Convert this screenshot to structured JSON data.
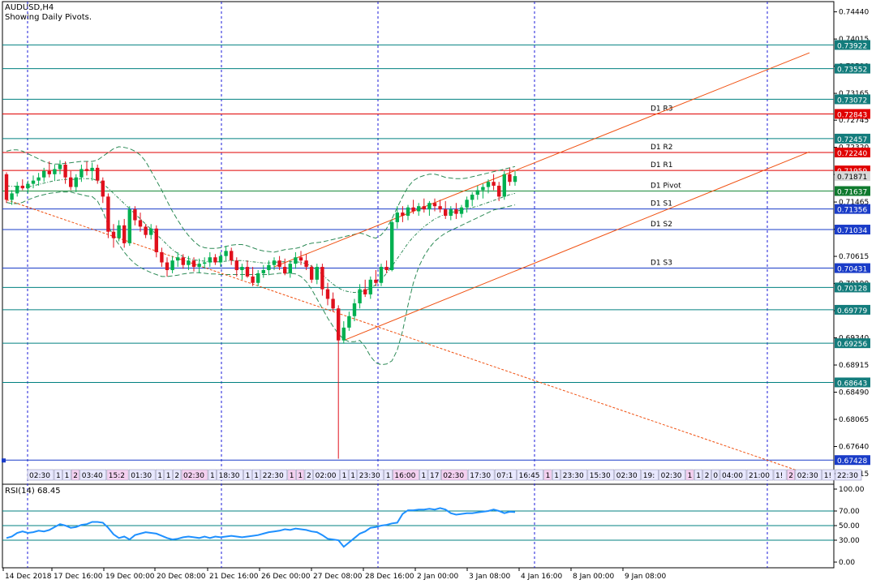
{
  "header": {
    "symbol": "AUDUSD,H4",
    "subtitle": "Showing Daily Pivots."
  },
  "rsi_panel": {
    "label": "RSI(14) 68.45"
  },
  "colors": {
    "bull": "#00b050",
    "bear": "#e0101c",
    "grid": "#1b1bd8",
    "hline": "#008080",
    "pivot_red": "#e00000",
    "channel": "#f05010",
    "bb": "#2e8b57",
    "rsi": "#1e90ff"
  },
  "chart_data": [
    {
      "type": "candlestick",
      "ylim": [
        0.6705,
        0.746
      ],
      "price_ticks": [
        "0.74440",
        "0.74015",
        "0.73590",
        "0.73165",
        "0.72745",
        "0.72320",
        "0.71895",
        "0.71465",
        "0.71040",
        "0.70615",
        "0.70190",
        "0.69765",
        "0.69340",
        "0.68915",
        "0.68490",
        "0.68065",
        "0.67640",
        "0.67215"
      ],
      "time_labels": [
        "14 Dec 2018",
        "17 Dec 16:00",
        "19 Dec 00:00",
        "20 Dec 08:00",
        "21 Dec 16:00",
        "26 Dec 00:00",
        "27 Dec 08:00",
        "28 Dec 16:00",
        "2 Jan 00:00",
        "3 Jan 08:00",
        "4 Jan 16:00",
        "8 Jan 00:00",
        "9 Jan 08:00"
      ],
      "strip_labels": [
        "02:30",
        "1",
        "1",
        "2",
        "03:40",
        "15:2",
        "01:30",
        "1",
        "1",
        "2",
        "02:30",
        "1",
        "18:30",
        "1",
        "1",
        "22:30",
        "1",
        "1",
        "2",
        "02:00",
        "1",
        "1",
        "23:30",
        "1",
        "16:00",
        "1",
        "17",
        "02:30",
        "17:30",
        "07:1",
        "16:45",
        "1",
        "1",
        "23:30",
        "15:30",
        "02:30",
        "19:",
        "02:30",
        "1",
        "1",
        "2",
        "0",
        "04:00",
        "21:00",
        "1!",
        "2",
        "02:30",
        "1!",
        "22:30"
      ],
      "levels": [
        {
          "price": 0.73922,
          "label": "0.73922",
          "kind": "teal"
        },
        {
          "price": 0.73552,
          "label": "0.73552",
          "kind": "teal"
        },
        {
          "price": 0.73072,
          "label": "0.73072",
          "kind": "teal"
        },
        {
          "price": 0.72843,
          "label": "0.72843",
          "kind": "red",
          "name": "D1 R3"
        },
        {
          "price": 0.72457,
          "label": "0.72457",
          "kind": "teal"
        },
        {
          "price": 0.7224,
          "label": "0.72240",
          "kind": "red",
          "name": "D1 R2"
        },
        {
          "price": 0.71959,
          "label": "0.71959",
          "kind": "red",
          "name": "D1 R1"
        },
        {
          "price": 0.71637,
          "label": "0.71637",
          "kind": "green",
          "name": "D1 Pivot"
        },
        {
          "price": 0.71356,
          "label": "0.71356",
          "kind": "blue",
          "name": "D1 S1"
        },
        {
          "price": 0.71034,
          "label": "0.71034",
          "kind": "blue",
          "name": "D1 S2"
        },
        {
          "price": 0.70431,
          "label": "0.70431",
          "kind": "blue",
          "name": "D1 S3"
        },
        {
          "price": 0.70128,
          "label": "0.70128",
          "kind": "teal"
        },
        {
          "price": 0.69779,
          "label": "0.69779",
          "kind": "teal"
        },
        {
          "price": 0.69256,
          "label": "0.69256",
          "kind": "teal"
        },
        {
          "price": 0.68643,
          "label": "0.68643",
          "kind": "teal"
        },
        {
          "price": 0.67428,
          "label": "0.67428",
          "kind": "blue"
        }
      ],
      "current_price": {
        "price": 0.71871,
        "label": "0.71871"
      },
      "candles": [
        [
          0.719,
          0.7193,
          0.7145,
          0.715
        ],
        [
          0.715,
          0.7165,
          0.7142,
          0.716
        ],
        [
          0.716,
          0.7178,
          0.7155,
          0.7172
        ],
        [
          0.7172,
          0.7182,
          0.7165,
          0.7168
        ],
        [
          0.7168,
          0.718,
          0.716,
          0.7175
        ],
        [
          0.7175,
          0.7188,
          0.7168,
          0.718
        ],
        [
          0.718,
          0.7192,
          0.7172,
          0.7185
        ],
        [
          0.7185,
          0.72,
          0.7178,
          0.7195
        ],
        [
          0.7195,
          0.721,
          0.7185,
          0.719
        ],
        [
          0.719,
          0.7205,
          0.718,
          0.7198
        ],
        [
          0.7198,
          0.7212,
          0.719,
          0.7205
        ],
        [
          0.7205,
          0.721,
          0.7175,
          0.7185
        ],
        [
          0.7185,
          0.7195,
          0.7165,
          0.717
        ],
        [
          0.717,
          0.719,
          0.7162,
          0.7185
        ],
        [
          0.7185,
          0.7205,
          0.7178,
          0.7198
        ],
        [
          0.7198,
          0.721,
          0.7188,
          0.7195
        ],
        [
          0.7195,
          0.7208,
          0.718,
          0.72
        ],
        [
          0.72,
          0.7205,
          0.7175,
          0.718
        ],
        [
          0.718,
          0.7185,
          0.7145,
          0.7155
        ],
        [
          0.7155,
          0.716,
          0.709,
          0.71
        ],
        [
          0.71,
          0.7112,
          0.7075,
          0.709
        ],
        [
          0.709,
          0.7118,
          0.7085,
          0.711
        ],
        [
          0.711,
          0.712,
          0.7075,
          0.7082
        ],
        [
          0.7082,
          0.714,
          0.7078,
          0.7135
        ],
        [
          0.7135,
          0.714,
          0.711,
          0.7118
        ],
        [
          0.7118,
          0.713,
          0.71,
          0.7108
        ],
        [
          0.7108,
          0.7112,
          0.709,
          0.7095
        ],
        [
          0.7095,
          0.7112,
          0.7088,
          0.7105
        ],
        [
          0.7105,
          0.711,
          0.706,
          0.7068
        ],
        [
          0.7068,
          0.7075,
          0.7045,
          0.7052
        ],
        [
          0.7052,
          0.706,
          0.703,
          0.704
        ],
        [
          0.704,
          0.7062,
          0.7035,
          0.7055
        ],
        [
          0.7055,
          0.7068,
          0.7045,
          0.706
        ],
        [
          0.706,
          0.7065,
          0.7042,
          0.7048
        ],
        [
          0.7048,
          0.7062,
          0.704,
          0.7055
        ],
        [
          0.7055,
          0.706,
          0.7038,
          0.7045
        ],
        [
          0.7045,
          0.7058,
          0.7035,
          0.705
        ],
        [
          0.705,
          0.706,
          0.7042,
          0.7052
        ],
        [
          0.7052,
          0.7068,
          0.7045,
          0.706
        ],
        [
          0.706,
          0.7065,
          0.7048,
          0.7052
        ],
        [
          0.7052,
          0.7068,
          0.7045,
          0.7062
        ],
        [
          0.7062,
          0.7078,
          0.7055,
          0.707
        ],
        [
          0.707,
          0.7075,
          0.7048,
          0.7055
        ],
        [
          0.7055,
          0.706,
          0.703,
          0.704
        ],
        [
          0.704,
          0.705,
          0.7025,
          0.7045
        ],
        [
          0.7045,
          0.7055,
          0.7028,
          0.703
        ],
        [
          0.703,
          0.7045,
          0.7015,
          0.702
        ],
        [
          0.702,
          0.704,
          0.7015,
          0.7035
        ],
        [
          0.7035,
          0.7048,
          0.7028,
          0.704
        ],
        [
          0.704,
          0.7055,
          0.7032,
          0.7048
        ],
        [
          0.7048,
          0.706,
          0.704,
          0.7055
        ],
        [
          0.7055,
          0.7062,
          0.704,
          0.7045
        ],
        [
          0.7045,
          0.7058,
          0.7032,
          0.7035
        ],
        [
          0.7035,
          0.7055,
          0.7028,
          0.705
        ],
        [
          0.705,
          0.7068,
          0.7042,
          0.706
        ],
        [
          0.706,
          0.707,
          0.7048,
          0.7055
        ],
        [
          0.7055,
          0.7065,
          0.704,
          0.7045
        ],
        [
          0.7045,
          0.7048,
          0.702,
          0.7025
        ],
        [
          0.7025,
          0.705,
          0.7018,
          0.7045
        ],
        [
          0.7045,
          0.705,
          0.7,
          0.701
        ],
        [
          0.701,
          0.702,
          0.6985,
          0.6995
        ],
        [
          0.6995,
          0.7005,
          0.6975,
          0.698
        ],
        [
          0.698,
          0.6985,
          0.6745,
          0.693
        ],
        [
          0.693,
          0.696,
          0.6925,
          0.695
        ],
        [
          0.695,
          0.6975,
          0.6945,
          0.6968
        ],
        [
          0.6968,
          0.6995,
          0.696,
          0.6988
        ],
        [
          0.6988,
          0.7018,
          0.698,
          0.701
        ],
        [
          0.701,
          0.7025,
          0.6998,
          0.7002
        ],
        [
          0.7002,
          0.703,
          0.6995,
          0.7025
        ],
        [
          0.7025,
          0.704,
          0.7015,
          0.702
        ],
        [
          0.702,
          0.705,
          0.7015,
          0.7045
        ],
        [
          0.7045,
          0.7055,
          0.7035,
          0.704
        ],
        [
          0.704,
          0.712,
          0.7038,
          0.7115
        ],
        [
          0.7115,
          0.714,
          0.7105,
          0.713
        ],
        [
          0.713,
          0.714,
          0.7115,
          0.7125
        ],
        [
          0.7125,
          0.7142,
          0.7118,
          0.7138
        ],
        [
          0.7138,
          0.715,
          0.7128,
          0.7132
        ],
        [
          0.7132,
          0.7145,
          0.7125,
          0.714
        ],
        [
          0.714,
          0.7152,
          0.713,
          0.7135
        ],
        [
          0.7135,
          0.7148,
          0.7125,
          0.7145
        ],
        [
          0.7145,
          0.7152,
          0.7132,
          0.714
        ],
        [
          0.714,
          0.715,
          0.713,
          0.7135
        ],
        [
          0.7135,
          0.7148,
          0.712,
          0.7125
        ],
        [
          0.7125,
          0.714,
          0.7118,
          0.7135
        ],
        [
          0.7135,
          0.7145,
          0.712,
          0.7128
        ],
        [
          0.7128,
          0.7142,
          0.7122,
          0.7138
        ],
        [
          0.7138,
          0.7155,
          0.713,
          0.715
        ],
        [
          0.715,
          0.7162,
          0.714,
          0.7158
        ],
        [
          0.7158,
          0.7172,
          0.715,
          0.7165
        ],
        [
          0.7165,
          0.7175,
          0.7152,
          0.717
        ],
        [
          0.717,
          0.7182,
          0.716,
          0.7178
        ],
        [
          0.7178,
          0.719,
          0.7165,
          0.7172
        ],
        [
          0.7172,
          0.7178,
          0.7148,
          0.7155
        ],
        [
          0.7155,
          0.7195,
          0.715,
          0.719
        ],
        [
          0.719,
          0.72,
          0.7172,
          0.7178
        ],
        [
          0.7178,
          0.7195,
          0.7172,
          0.7187
        ]
      ],
      "ma_upper": [
        0.7226,
        0.7228,
        0.7228,
        0.7226,
        0.7222,
        0.7218,
        0.7214,
        0.721,
        0.7207,
        0.7206,
        0.7206,
        0.7207,
        0.7208,
        0.7209,
        0.721,
        0.721,
        0.721,
        0.7212,
        0.7218,
        0.7224,
        0.723,
        0.7233,
        0.7232,
        0.723,
        0.7226,
        0.722,
        0.721,
        0.7195,
        0.718,
        0.7165,
        0.7148,
        0.7132,
        0.7118,
        0.7105,
        0.7094,
        0.7085,
        0.7078,
        0.7075,
        0.7074,
        0.7074,
        0.7075,
        0.7077,
        0.7079,
        0.708,
        0.708,
        0.7078,
        0.7075,
        0.7072,
        0.707,
        0.7069,
        0.7068,
        0.707,
        0.7072,
        0.7073,
        0.7074,
        0.7076,
        0.708,
        0.7082,
        0.7083,
        0.7084,
        0.7086,
        0.7088,
        0.709,
        0.7092,
        0.7094,
        0.7096,
        0.7098,
        0.7096,
        0.7092,
        0.709,
        0.7095,
        0.7105,
        0.712,
        0.7138,
        0.7155,
        0.717,
        0.718,
        0.7185,
        0.7188,
        0.719,
        0.719,
        0.7188,
        0.7185,
        0.7184,
        0.7183,
        0.7183,
        0.7184,
        0.7186,
        0.7188,
        0.719,
        0.7192,
        0.7194,
        0.7196,
        0.7198,
        0.72,
        0.7202
      ],
      "ma_mid": [
        0.7172,
        0.7171,
        0.7171,
        0.717,
        0.717,
        0.7172,
        0.7174,
        0.7176,
        0.7178,
        0.718,
        0.7181,
        0.7182,
        0.7182,
        0.7182,
        0.7183,
        0.7183,
        0.7183,
        0.718,
        0.7175,
        0.7168,
        0.716,
        0.7152,
        0.7144,
        0.7136,
        0.7128,
        0.712,
        0.7112,
        0.7104,
        0.7096,
        0.7088,
        0.708,
        0.7072,
        0.7066,
        0.7061,
        0.7058,
        0.7056,
        0.7055,
        0.7054,
        0.7053,
        0.7053,
        0.7053,
        0.7054,
        0.7055,
        0.7055,
        0.7055,
        0.7054,
        0.7053,
        0.7052,
        0.7051,
        0.7051,
        0.7052,
        0.7053,
        0.7053,
        0.7053,
        0.7053,
        0.7052,
        0.705,
        0.7046,
        0.704,
        0.7033,
        0.7025,
        0.7018,
        0.7012,
        0.7008,
        0.7006,
        0.7005,
        0.7006,
        0.7008,
        0.7012,
        0.7017,
        0.7025,
        0.7035,
        0.7046,
        0.7058,
        0.707,
        0.7082,
        0.7092,
        0.71,
        0.7108,
        0.7114,
        0.712,
        0.7124,
        0.7128,
        0.713,
        0.7132,
        0.7134,
        0.7136,
        0.7138,
        0.714,
        0.7143,
        0.7146,
        0.7149,
        0.7152,
        0.7155,
        0.7158,
        0.716
      ],
      "ma_lower": [
        0.7146,
        0.7144,
        0.7144,
        0.7146,
        0.715,
        0.7153,
        0.7156,
        0.7158,
        0.716,
        0.7161,
        0.7162,
        0.7162,
        0.7162,
        0.716,
        0.7158,
        0.7156,
        0.7155,
        0.7148,
        0.7132,
        0.711,
        0.7092,
        0.708,
        0.7068,
        0.7058,
        0.705,
        0.7044,
        0.704,
        0.7036,
        0.7033,
        0.703,
        0.703,
        0.7031,
        0.7032,
        0.7034,
        0.7035,
        0.7036,
        0.7036,
        0.7035,
        0.7034,
        0.7034,
        0.7033,
        0.7033,
        0.7033,
        0.7033,
        0.7033,
        0.7033,
        0.7033,
        0.7033,
        0.7033,
        0.7033,
        0.7034,
        0.7035,
        0.7035,
        0.7035,
        0.7034,
        0.703,
        0.7022,
        0.701,
        0.6995,
        0.698,
        0.6965,
        0.6952,
        0.694,
        0.6932,
        0.6928,
        0.6928,
        0.693,
        0.692,
        0.6905,
        0.6895,
        0.6892,
        0.6893,
        0.6898,
        0.6915,
        0.6945,
        0.6985,
        0.702,
        0.7045,
        0.7062,
        0.7075,
        0.7085,
        0.7092,
        0.7098,
        0.7102,
        0.7106,
        0.711,
        0.7114,
        0.7118,
        0.7122,
        0.7126,
        0.713,
        0.7134,
        0.7136,
        0.7138,
        0.714,
        0.7142
      ],
      "trendlines": [
        {
          "kind": "dotted",
          "from": [
            0,
            0.715
          ],
          "to": [
            150,
            0.672
          ]
        },
        {
          "kind": "solid",
          "from": [
            63,
            0.693
          ],
          "to": [
            150,
            0.7225
          ]
        },
        {
          "kind": "solid",
          "from": [
            50,
            0.7045
          ],
          "to": [
            150,
            0.738
          ]
        }
      ]
    },
    {
      "type": "line",
      "name": "RSI(14)",
      "ylim": [
        0,
        100
      ],
      "ticks": [
        "100.00",
        "70.00",
        "50.00",
        "30.00",
        "0.00"
      ],
      "levels": [
        70,
        50,
        30
      ],
      "values": [
        33,
        35,
        40,
        42,
        40,
        41,
        43,
        42,
        44,
        48,
        52,
        50,
        47,
        48,
        51,
        52,
        55,
        55,
        54,
        47,
        38,
        33,
        35,
        31,
        37,
        39,
        41,
        40,
        39,
        36,
        33,
        31,
        32,
        34,
        35,
        34,
        33,
        35,
        33,
        35,
        34,
        35,
        36,
        35,
        34,
        35,
        36,
        37,
        39,
        41,
        42,
        43,
        45,
        44,
        46,
        45,
        44,
        42,
        41,
        37,
        32,
        31,
        30,
        21,
        27,
        33,
        39,
        42,
        47,
        48,
        50,
        51,
        53,
        54,
        66,
        71,
        71,
        72,
        72,
        73,
        72,
        74,
        72,
        67,
        65,
        66,
        67,
        67,
        68,
        69,
        70,
        72,
        70,
        67,
        69,
        68.45
      ]
    }
  ]
}
